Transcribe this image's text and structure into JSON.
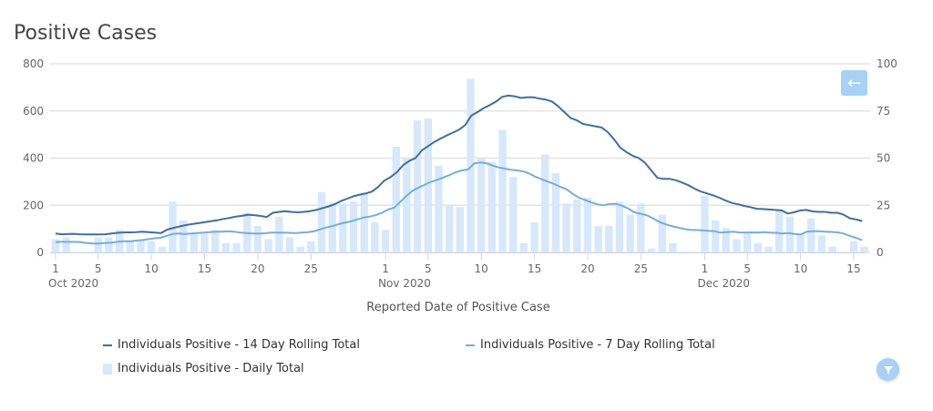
{
  "colors": {
    "line14": "#3f6fa0",
    "line7": "#74aedb",
    "bar": "#d7e8fb",
    "grid": "#e3e3e3",
    "button": "#a9d0f5"
  },
  "buttons": {
    "back_icon": "arrow-left-icon",
    "filter_icon": "filter-icon"
  },
  "chart_data": {
    "type": "bar+line",
    "title": "Positive Cases",
    "xlabel": "Reported Date of Positive Case",
    "ylabel_left": "",
    "ylabel_right": "",
    "ylim_left": [
      0,
      800
    ],
    "ylim_right": [
      0,
      100
    ],
    "yticks_left": [
      "0",
      "200",
      "400",
      "600",
      "800"
    ],
    "yticks_right": [
      "0",
      "25",
      "50",
      "75",
      "100"
    ],
    "x_ticks": [
      {
        "day": 1,
        "label": "1",
        "sub": "Oct 2020"
      },
      {
        "day": 5,
        "label": "5",
        "sub": ""
      },
      {
        "day": 10,
        "label": "10",
        "sub": ""
      },
      {
        "day": 15,
        "label": "15",
        "sub": ""
      },
      {
        "day": 20,
        "label": "20",
        "sub": ""
      },
      {
        "day": 25,
        "label": "25",
        "sub": ""
      },
      {
        "day": 32,
        "label": "1",
        "sub": "Nov 2020"
      },
      {
        "day": 36,
        "label": "5",
        "sub": ""
      },
      {
        "day": 41,
        "label": "10",
        "sub": ""
      },
      {
        "day": 46,
        "label": "15",
        "sub": ""
      },
      {
        "day": 51,
        "label": "20",
        "sub": ""
      },
      {
        "day": 56,
        "label": "25",
        "sub": ""
      },
      {
        "day": 62,
        "label": "1",
        "sub": "Dec 2020"
      },
      {
        "day": 66,
        "label": "5",
        "sub": ""
      },
      {
        "day": 71,
        "label": "10",
        "sub": ""
      },
      {
        "day": 76,
        "label": "15",
        "sub": ""
      }
    ],
    "grid": true,
    "legend_position": "bottom",
    "series": [
      {
        "name": "Individuals Positive - 14 Day Rolling Total",
        "kind": "line",
        "axis": "left",
        "values": [
          80,
          77,
          78,
          79,
          77,
          76,
          76,
          76,
          77,
          80,
          83,
          85,
          85,
          86,
          88,
          86,
          84,
          82,
          97,
          104,
          110,
          116,
          120,
          124,
          128,
          132,
          136,
          142,
          146,
          152,
          155,
          160,
          158,
          155,
          150,
          168,
          172,
          175,
          172,
          170,
          172,
          175,
          180,
          188,
          195,
          205,
          218,
          228,
          238,
          245,
          250,
          258,
          278,
          305,
          320,
          340,
          370,
          388,
          400,
          432,
          450,
          468,
          482,
          496,
          508,
          520,
          540,
          580,
          595,
          612,
          625,
          640,
          660,
          665,
          662,
          655,
          658,
          658,
          652,
          648,
          640,
          620,
          595,
          570,
          560,
          545,
          540,
          535,
          530,
          510,
          480,
          445,
          425,
          410,
          400,
          380,
          348,
          316,
          312,
          312,
          306,
          296,
          285,
          270,
          258,
          250,
          242,
          232,
          220,
          210,
          204,
          197,
          192,
          185,
          184,
          182,
          180,
          178,
          165,
          170,
          178,
          180,
          174,
          172,
          172,
          168,
          168,
          160,
          145,
          140,
          133
        ]
      },
      {
        "name": "Individuals Positive - 7 Day Rolling Total",
        "kind": "line",
        "axis": "left",
        "values": [
          44,
          45,
          45,
          45,
          44,
          40,
          38,
          38,
          40,
          41,
          45,
          47,
          47,
          50,
          52,
          56,
          60,
          62,
          70,
          78,
          80,
          78,
          80,
          82,
          84,
          86,
          88,
          88,
          90,
          88,
          84,
          82,
          80,
          80,
          81,
          84,
          84,
          84,
          83,
          82,
          84,
          86,
          90,
          98,
          106,
          112,
          120,
          126,
          132,
          140,
          148,
          152,
          158,
          168,
          182,
          190,
          215,
          240,
          262,
          275,
          288,
          300,
          308,
          318,
          328,
          340,
          348,
          352,
          378,
          382,
          378,
          368,
          360,
          355,
          350,
          348,
          343,
          334,
          320,
          310,
          300,
          290,
          278,
          268,
          248,
          232,
          222,
          212,
          204,
          200,
          206,
          206,
          198,
          186,
          170,
          164,
          158,
          145,
          130,
          120,
          112,
          106,
          100,
          96,
          95,
          94,
          92,
          90,
          84,
          86,
          88,
          85,
          84,
          85,
          84,
          86,
          84,
          83,
          80,
          82,
          78,
          76,
          88,
          90,
          90,
          88,
          87,
          85,
          80,
          70,
          62,
          52
        ]
      },
      {
        "name": "Individuals Positive - Daily Total",
        "kind": "bar",
        "axis": "right",
        "x": [
          1,
          2,
          3,
          4,
          5,
          6,
          7,
          8,
          9,
          10,
          11,
          12,
          13,
          14,
          15,
          16,
          17,
          18,
          19,
          20,
          21,
          22,
          23,
          24,
          25,
          26,
          27,
          28,
          29,
          30,
          31,
          32,
          33,
          34,
          35,
          36,
          37,
          38,
          39,
          40,
          41,
          42,
          43,
          44,
          45,
          46,
          47,
          48,
          49,
          50,
          51,
          52,
          53,
          54,
          55,
          56,
          57,
          58,
          59,
          60,
          61,
          62,
          63,
          64,
          65,
          66,
          67,
          68,
          69,
          70,
          71,
          72,
          73,
          74,
          75,
          76,
          77
        ],
        "values": [
          7,
          8,
          0,
          0,
          8,
          8,
          12,
          6,
          7,
          6,
          3,
          27,
          17,
          10,
          10,
          12,
          5,
          5,
          21,
          14,
          7,
          19,
          8,
          3,
          6,
          32,
          26,
          26,
          27,
          32,
          16,
          12,
          56,
          50,
          70,
          71,
          46,
          25,
          24,
          92,
          50,
          48,
          65,
          40,
          5,
          16,
          52,
          42,
          26,
          28,
          29,
          14,
          14,
          27,
          20,
          26,
          2,
          20,
          5,
          0.5,
          0,
          30,
          17,
          13,
          7,
          10,
          5,
          3,
          23,
          19,
          10,
          18,
          9,
          3,
          0.5,
          6,
          3
        ]
      }
    ]
  },
  "legend": [
    {
      "label": "Individuals Positive - 14 Day Rolling Total",
      "kind": "line"
    },
    {
      "label": "Individuals Positive - 7 Day Rolling Total",
      "kind": "line"
    },
    {
      "label": "Individuals Positive - Daily Total",
      "kind": "bar"
    }
  ]
}
